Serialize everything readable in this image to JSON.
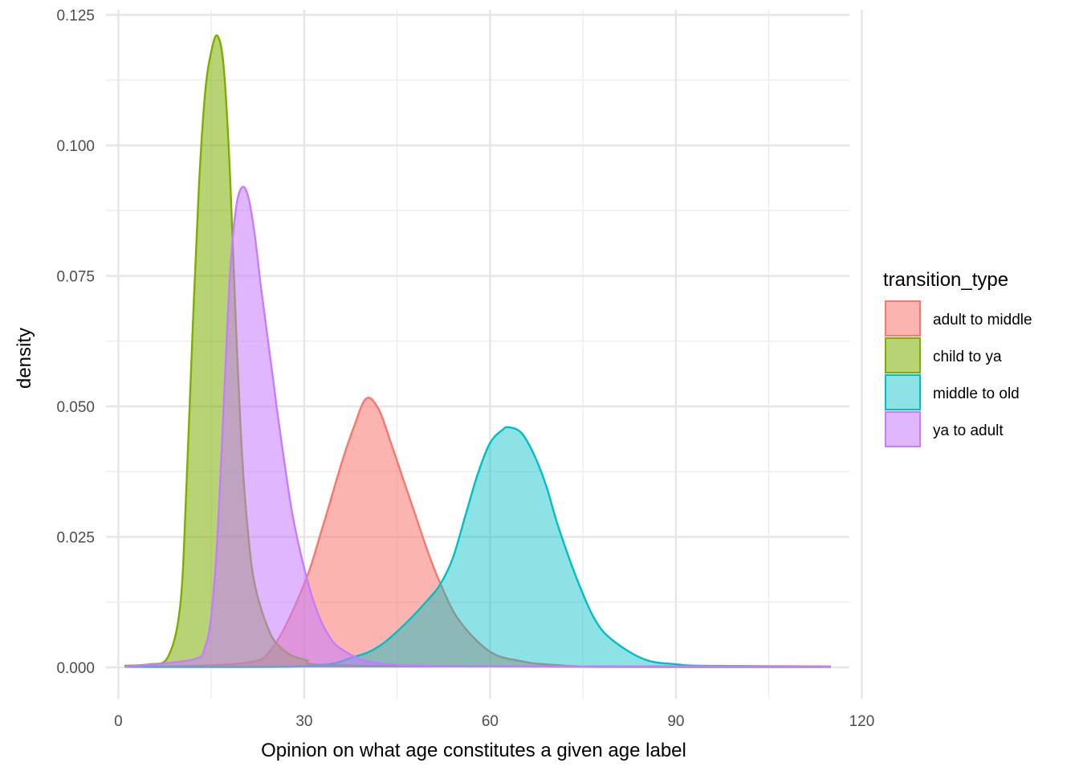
{
  "chart_data": {
    "type": "area",
    "subtype": "density",
    "xlabel": "Opinion on what age constitutes a given age label",
    "ylabel": "density",
    "xlim": [
      -2,
      118
    ],
    "ylim": [
      -0.006,
      0.126
    ],
    "x_ticks": [
      0,
      30,
      60,
      90,
      120
    ],
    "y_ticks": [
      0.0,
      0.025,
      0.05,
      0.075,
      0.1,
      0.125
    ],
    "x_tick_labels": [
      "0",
      "30",
      "60",
      "90",
      "120"
    ],
    "y_tick_labels": [
      "0.000",
      "0.025",
      "0.050",
      "0.075",
      "0.100",
      "0.125"
    ],
    "grid": true,
    "legend": {
      "title": "transition_type",
      "position": "right"
    },
    "series": [
      {
        "name": "adult to middle",
        "color": "#F8766D",
        "fill_opacity": 0.55,
        "x": [
          1,
          20,
          25,
          30,
          33,
          36,
          38,
          40,
          42,
          44,
          46,
          48,
          50,
          52,
          55,
          60,
          65,
          70,
          80,
          115
        ],
        "y": [
          0.0001,
          0.0008,
          0.004,
          0.016,
          0.027,
          0.039,
          0.046,
          0.0515,
          0.0495,
          0.043,
          0.036,
          0.029,
          0.022,
          0.016,
          0.009,
          0.003,
          0.0012,
          0.0005,
          0.0001,
          0.0001
        ]
      },
      {
        "name": "child to ya",
        "color": "#7CAE00",
        "fill_opacity": 0.55,
        "x": [
          1,
          5,
          8,
          10,
          11,
          12,
          13,
          14,
          15,
          16,
          17,
          18,
          19,
          20,
          21,
          22,
          24,
          26,
          30,
          40,
          115
        ],
        "y": [
          0.0003,
          0.0006,
          0.002,
          0.012,
          0.035,
          0.065,
          0.092,
          0.11,
          0.118,
          0.121,
          0.115,
          0.095,
          0.065,
          0.04,
          0.025,
          0.016,
          0.008,
          0.004,
          0.0015,
          0.0003,
          0.0001
        ]
      },
      {
        "name": "middle to old",
        "color": "#00BFC4",
        "fill_opacity": 0.45,
        "x": [
          1,
          30,
          38,
          42,
          46,
          50,
          52,
          54,
          56,
          58,
          60,
          62,
          63,
          65,
          67,
          69,
          71,
          74,
          77,
          80,
          85,
          90,
          95,
          115
        ],
        "y": [
          0.0001,
          0.0002,
          0.002,
          0.004,
          0.008,
          0.013,
          0.016,
          0.021,
          0.029,
          0.037,
          0.043,
          0.0455,
          0.046,
          0.045,
          0.041,
          0.035,
          0.027,
          0.017,
          0.009,
          0.005,
          0.0015,
          0.0006,
          0.0003,
          0.0002
        ]
      },
      {
        "name": "ya to adult",
        "color": "#C77CFF",
        "fill_opacity": 0.55,
        "x": [
          1,
          12,
          14,
          15,
          16,
          17,
          18,
          19,
          20,
          21,
          22,
          23,
          24,
          25,
          26,
          28,
          30,
          32,
          34,
          36,
          40,
          45,
          50,
          60,
          115
        ],
        "y": [
          0.0001,
          0.0015,
          0.004,
          0.01,
          0.025,
          0.05,
          0.075,
          0.088,
          0.092,
          0.09,
          0.083,
          0.073,
          0.064,
          0.055,
          0.046,
          0.03,
          0.019,
          0.011,
          0.006,
          0.0035,
          0.0012,
          0.0005,
          0.0003,
          0.0002,
          0.0002
        ]
      }
    ]
  }
}
